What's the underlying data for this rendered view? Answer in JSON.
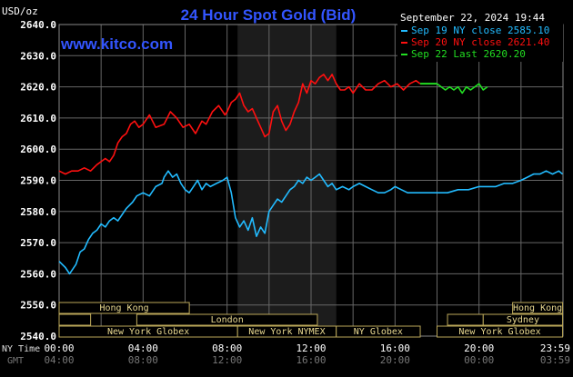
{
  "chart_data": {
    "type": "line",
    "title": "24 Hour Spot Gold (Bid)",
    "unit_label": "USD/oz",
    "website": "www.kitco.com",
    "date_label": "September 22, 2024 19:44",
    "ylim": [
      2540,
      2640
    ],
    "yticks": [
      "2640.0",
      "2630.0",
      "2620.0",
      "2610.0",
      "2600.0",
      "2590.0",
      "2580.0",
      "2570.0",
      "2560.0",
      "2550.0",
      "2540.0"
    ],
    "ytick_values": [
      2640,
      2630,
      2620,
      2610,
      2600,
      2590,
      2580,
      2570,
      2560,
      2550,
      2540
    ],
    "xlim": [
      0,
      24
    ],
    "x_label_ny": "NY Time",
    "x_label_gmt": "GMT",
    "xticks_ny": [
      "00:00",
      "04:00",
      "08:00",
      "12:00",
      "16:00",
      "20:00",
      "23:59"
    ],
    "xticks_gmt": [
      "04:00",
      "08:00",
      "12:00",
      "16:00",
      "20:00",
      "00:00",
      "03:59"
    ],
    "xtick_values": [
      0,
      4,
      8,
      12,
      16,
      20,
      23.98
    ],
    "shaded_region": [
      8.5,
      13.2
    ],
    "grid": true,
    "legend_position": "top-right",
    "series": [
      {
        "name": "Sep 19 NY close 2585.10",
        "color": "#22bbff",
        "x": [
          0,
          0.3,
          0.5,
          0.8,
          1,
          1.2,
          1.4,
          1.6,
          1.8,
          2,
          2.2,
          2.4,
          2.6,
          2.8,
          3,
          3.2,
          3.5,
          3.7,
          4,
          4.3,
          4.6,
          4.9,
          5,
          5.2,
          5.4,
          5.6,
          5.8,
          6,
          6.2,
          6.4,
          6.6,
          6.8,
          7,
          7.2,
          7.5,
          7.8,
          8,
          8.2,
          8.4,
          8.6,
          8.8,
          9,
          9.2,
          9.4,
          9.6,
          9.8,
          10,
          10.2,
          10.4,
          10.6,
          10.8,
          11,
          11.2,
          11.4,
          11.6,
          11.8,
          12,
          12.2,
          12.4,
          12.6,
          12.8,
          13,
          13.2,
          13.5,
          13.8,
          14,
          14.3,
          14.6,
          14.9,
          15.2,
          15.5,
          15.8,
          16,
          16.3,
          16.6,
          17,
          17.5,
          18,
          18.5,
          19,
          19.5,
          20,
          20.4,
          20.8,
          21.2,
          21.6,
          22,
          22.3,
          22.6,
          22.9,
          23.2,
          23.5,
          23.8,
          23.98
        ],
        "y": [
          2564,
          2562,
          2560,
          2563,
          2567,
          2568,
          2571,
          2573,
          2574,
          2576,
          2575,
          2577,
          2578,
          2577,
          2579,
          2581,
          2583,
          2585,
          2586,
          2585,
          2588,
          2589,
          2591,
          2593,
          2591,
          2592,
          2589,
          2587,
          2586,
          2588,
          2590,
          2587,
          2589,
          2588,
          2589,
          2590,
          2591,
          2586,
          2578,
          2575,
          2577,
          2574,
          2578,
          2572,
          2575,
          2573,
          2580,
          2582,
          2584,
          2583,
          2585,
          2587,
          2588,
          2590,
          2589,
          2591,
          2590,
          2591,
          2592,
          2590,
          2588,
          2589,
          2587,
          2588,
          2587,
          2588,
          2589,
          2588,
          2587,
          2586,
          2586,
          2587,
          2588,
          2587,
          2586,
          2586,
          2586,
          2586,
          2586,
          2587,
          2587,
          2588,
          2588,
          2588,
          2589,
          2589,
          2590,
          2591,
          2592,
          2592,
          2593,
          2592,
          2593,
          2592
        ]
      },
      {
        "name": "Sep 20 NY close 2621.40",
        "color": "#ff1010",
        "x": [
          0,
          0.3,
          0.6,
          0.9,
          1.2,
          1.5,
          1.8,
          2,
          2.2,
          2.4,
          2.6,
          2.8,
          3,
          3.2,
          3.4,
          3.6,
          3.8,
          4,
          4.3,
          4.6,
          5,
          5.3,
          5.6,
          5.9,
          6.2,
          6.5,
          6.8,
          7,
          7.3,
          7.6,
          7.9,
          8,
          8.2,
          8.4,
          8.6,
          8.8,
          9,
          9.2,
          9.4,
          9.6,
          9.8,
          10,
          10.2,
          10.4,
          10.6,
          10.8,
          11,
          11.2,
          11.4,
          11.6,
          11.8,
          12,
          12.2,
          12.4,
          12.6,
          12.8,
          13,
          13.2,
          13.4,
          13.6,
          13.8,
          14,
          14.3,
          14.6,
          14.9,
          15.2,
          15.5,
          15.8,
          16.1,
          16.4,
          16.7,
          17,
          17.2
        ],
        "y": [
          2593,
          2592,
          2593,
          2593,
          2594,
          2593,
          2595,
          2596,
          2597,
          2596,
          2598,
          2602,
          2604,
          2605,
          2608,
          2609,
          2607,
          2608,
          2611,
          2607,
          2608,
          2612,
          2610,
          2607,
          2608,
          2605,
          2609,
          2608,
          2612,
          2614,
          2611,
          2612,
          2615,
          2616,
          2618,
          2614,
          2612,
          2613,
          2610,
          2607,
          2604,
          2605,
          2612,
          2614,
          2609,
          2606,
          2608,
          2612,
          2615,
          2621,
          2618,
          2622,
          2621,
          2623,
          2624,
          2622,
          2624,
          2621,
          2619,
          2619,
          2620,
          2618,
          2621,
          2619,
          2619,
          2621,
          2622,
          2620,
          2621,
          2619,
          2621,
          2622,
          2621
        ]
      },
      {
        "name": "Sep 22 Last 2620.20",
        "color": "#22dd22",
        "x": [
          18,
          18.2,
          18.4,
          18.6,
          18.8,
          19,
          19.2,
          19.4,
          19.6,
          19.8,
          20,
          20.2,
          20.4
        ],
        "y": [
          2621,
          2620,
          2619,
          2620,
          2619,
          2620,
          2618,
          2620,
          2619,
          2620,
          2621,
          2619,
          2620
        ]
      }
    ],
    "sessions_top": [
      {
        "name": "Hong Kong",
        "start": 0,
        "end": 6.2
      },
      {
        "name": "Hong Kong",
        "start": 21.6,
        "end": 23.98
      }
    ],
    "sessions_mid": [
      {
        "name": "",
        "start": 0,
        "end": 1.5
      },
      {
        "name": "London",
        "start": 3.7,
        "end": 12.3
      },
      {
        "name": "",
        "start": 18.5,
        "end": 20.2
      },
      {
        "name": "Sydney",
        "start": 20.2,
        "end": 23.98
      }
    ],
    "sessions_bot": [
      {
        "name": "New York Globex",
        "start": 0,
        "end": 8.5
      },
      {
        "name": "New York NYMEX",
        "start": 8.5,
        "end": 13.2
      },
      {
        "name": "NY Globex",
        "start": 13.2,
        "end": 17.2
      },
      {
        "name": "New York Globex",
        "start": 18,
        "end": 23.98
      }
    ]
  }
}
